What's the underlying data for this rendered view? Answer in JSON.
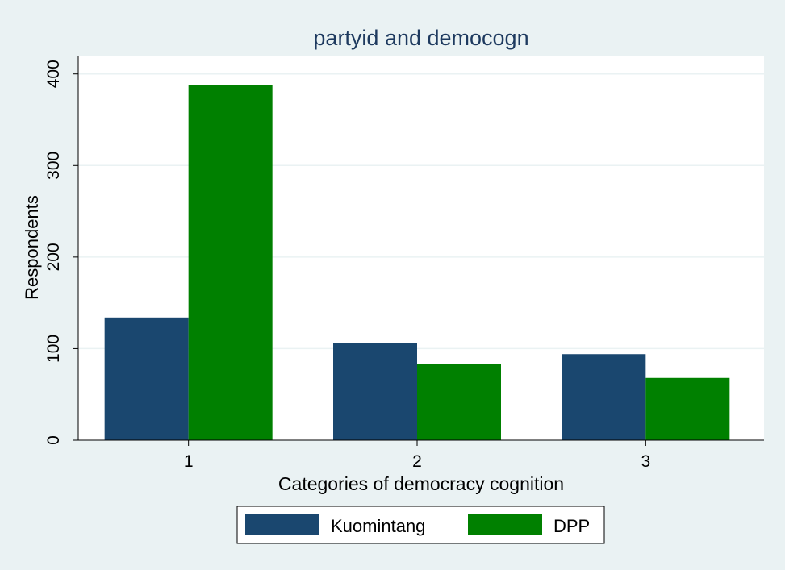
{
  "chart_data": {
    "type": "bar",
    "title": "partyid and democogn",
    "xlabel": "Categories of democracy cognition",
    "ylabel": "Respondents",
    "categories": [
      "1",
      "2",
      "3"
    ],
    "series": [
      {
        "name": "Kuomintang",
        "color": "#1a476f",
        "values": [
          134,
          106,
          94
        ]
      },
      {
        "name": "DPP",
        "color": "#008000",
        "values": [
          388,
          83,
          68
        ]
      }
    ],
    "ylim": [
      0,
      420
    ],
    "yticks": [
      0,
      100,
      200,
      300,
      400
    ],
    "grid": true,
    "legend_position": "bottom"
  },
  "colors": {
    "background": "#eaf2f3",
    "plot_background": "#ffffff",
    "gridline": "#eaf2f3",
    "title": "#1e3a5f",
    "text": "#000000"
  }
}
